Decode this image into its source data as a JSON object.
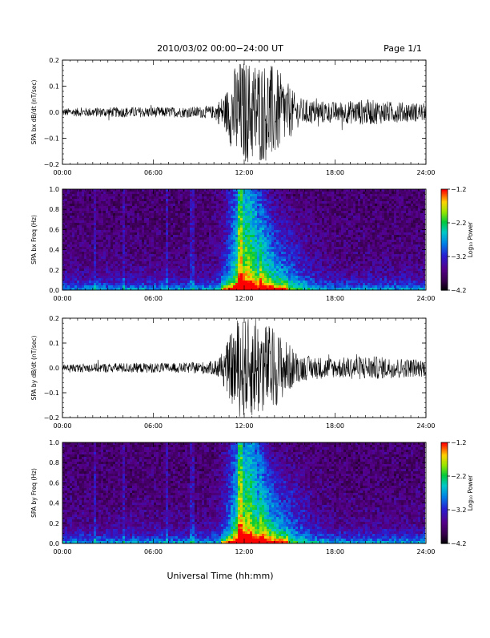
{
  "header": {
    "title": "2010/03/02  00:00−24:00 UT",
    "page": "Page 1/1"
  },
  "x_axis_title": "Universal Time (hh:mm)",
  "colors": {
    "trace": "#000000",
    "background": "#ffffff",
    "axis": "#000000"
  },
  "chart_data": [
    {
      "type": "line",
      "ylabel": "SPA bx dB/dt (nT/sec)",
      "x_ticks": [
        "00:00",
        "06:00",
        "12:00",
        "18:00",
        "24:00"
      ],
      "xlim_hours": [
        0,
        24
      ],
      "ylim": [
        -0.2,
        0.2
      ],
      "y_ticks": [
        "0.2",
        "0.1",
        "0.0",
        "−0.1",
        "−0.2"
      ],
      "y_tick_values": [
        0.2,
        0.1,
        0.0,
        -0.1,
        -0.2
      ],
      "envelope": {
        "hours": [
          0,
          2,
          4,
          6,
          8,
          10,
          10.8,
          11.5,
          12,
          13,
          14,
          14.8,
          15.5,
          16,
          18,
          20,
          22,
          24
        ],
        "amplitude": [
          0.015,
          0.018,
          0.02,
          0.02,
          0.02,
          0.025,
          0.08,
          0.2,
          0.2,
          0.2,
          0.18,
          0.12,
          0.06,
          0.05,
          0.04,
          0.05,
          0.04,
          0.035
        ]
      }
    },
    {
      "type": "heatmap",
      "ylabel": "SPA bx Freq (Hz)",
      "x_ticks": [
        "00:00",
        "06:00",
        "12:00",
        "18:00",
        "24:00"
      ],
      "xlim_hours": [
        0,
        24
      ],
      "ylim": [
        0,
        1.0
      ],
      "y_ticks": [
        "1.0",
        "0.8",
        "0.6",
        "0.4",
        "0.2",
        "0.0"
      ],
      "y_tick_values": [
        1.0,
        0.8,
        0.6,
        0.4,
        0.2,
        0.0
      ],
      "colorbar": {
        "label": "Log₁₀ Power",
        "range": [
          -4.2,
          -1.2
        ],
        "ticks": [
          "−1.2",
          "−2.2",
          "−3.2",
          "−4.2"
        ],
        "tick_values": [
          -1.2,
          -2.2,
          -3.2,
          -4.2
        ]
      }
    },
    {
      "type": "line",
      "ylabel": "SPA by dB/dt (nT/sec)",
      "x_ticks": [
        "00:00",
        "06:00",
        "12:00",
        "18:00",
        "24:00"
      ],
      "xlim_hours": [
        0,
        24
      ],
      "ylim": [
        -0.2,
        0.2
      ],
      "y_ticks": [
        "0.2",
        "0.1",
        "0.0",
        "−0.1",
        "−0.2"
      ],
      "y_tick_values": [
        0.2,
        0.1,
        0.0,
        -0.1,
        -0.2
      ],
      "envelope": {
        "hours": [
          0,
          2,
          4,
          6,
          8,
          10,
          10.8,
          11.5,
          12,
          13,
          14,
          14.8,
          15.5,
          16,
          18,
          20,
          22,
          24
        ],
        "amplitude": [
          0.015,
          0.018,
          0.02,
          0.02,
          0.02,
          0.028,
          0.09,
          0.2,
          0.2,
          0.2,
          0.16,
          0.11,
          0.06,
          0.05,
          0.04,
          0.05,
          0.04,
          0.035
        ]
      }
    },
    {
      "type": "heatmap",
      "ylabel": "SPA by Freq (Hz)",
      "x_ticks": [
        "00:00",
        "06:00",
        "12:00",
        "18:00",
        "24:00"
      ],
      "xlim_hours": [
        0,
        24
      ],
      "ylim": [
        0,
        1.0
      ],
      "y_ticks": [
        "1.0",
        "0.8",
        "0.6",
        "0.4",
        "0.2",
        "0.0"
      ],
      "y_tick_values": [
        1.0,
        0.8,
        0.6,
        0.4,
        0.2,
        0.0
      ],
      "colorbar": {
        "label": "Log₁₀ Power",
        "range": [
          -4.2,
          -1.2
        ],
        "ticks": [
          "−1.2",
          "−2.2",
          "−3.2",
          "−4.2"
        ],
        "tick_values": [
          -1.2,
          -2.2,
          -3.2,
          -4.2
        ]
      }
    }
  ]
}
